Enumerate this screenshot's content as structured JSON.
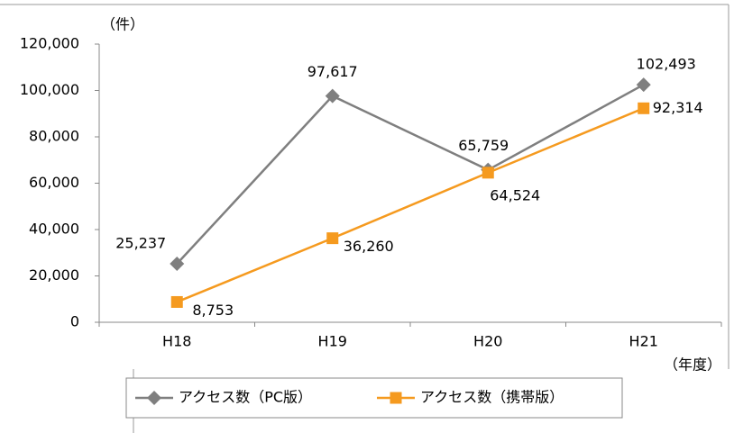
{
  "chart_data": {
    "type": "line",
    "y_axis_label": "（件）",
    "x_axis_label": "（年度）",
    "categories": [
      "H18",
      "H19",
      "H20",
      "H21"
    ],
    "series": [
      {
        "name": "アクセス数（PC版）",
        "color": "#7f7f7f",
        "marker": "diamond",
        "values": [
          25237,
          97617,
          65759,
          102493
        ],
        "value_labels": [
          "25,237",
          "97,617",
          "65,759",
          "102,493"
        ]
      },
      {
        "name": "アクセス数（携帯版）",
        "color": "#f59a1f",
        "marker": "square",
        "values": [
          8753,
          36260,
          64524,
          92314
        ],
        "value_labels": [
          "8,753",
          "36,260",
          "64,524",
          "92,314"
        ]
      }
    ],
    "ylim": [
      0,
      120000
    ],
    "yticks": [
      0,
      {
        "value": 20000,
        "label": "20,000"
      },
      {
        "value": 40000,
        "label": "40,000"
      },
      {
        "value": 60000,
        "label": "60,000"
      },
      {
        "value": 80000,
        "label": "80,000"
      },
      {
        "value": 100000,
        "label": "100,000"
      },
      {
        "value": 120000,
        "label": "120,000"
      }
    ],
    "grid": false,
    "legend": "bottom"
  }
}
